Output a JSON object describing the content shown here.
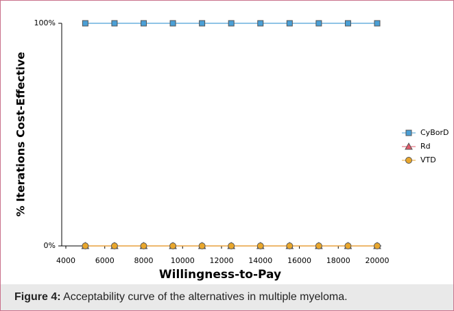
{
  "chart_data": {
    "type": "line",
    "ylabel": "% Iterations Cost-Effective",
    "xlabel": "Willingness-to-Pay",
    "x": [
      5000,
      6500,
      8000,
      9500,
      11000,
      12500,
      14000,
      15500,
      17000,
      18500,
      20000
    ],
    "series": [
      {
        "name": "CyBorD",
        "color": "#4a9fd6",
        "marker": "square",
        "values": [
          100,
          100,
          100,
          100,
          100,
          100,
          100,
          100,
          100,
          100,
          100
        ]
      },
      {
        "name": "Rd",
        "color": "#e05a6a",
        "marker": "triangle",
        "values": [
          0,
          0,
          0,
          0,
          0,
          0,
          0,
          0,
          0,
          0,
          0
        ]
      },
      {
        "name": "VTD",
        "color": "#e8a62c",
        "marker": "circle",
        "values": [
          0,
          0,
          0,
          0,
          0,
          0,
          0,
          0,
          0,
          0,
          0
        ]
      }
    ],
    "xlim": [
      4000,
      20000
    ],
    "xticks": [
      4000,
      6000,
      8000,
      10000,
      12000,
      14000,
      16000,
      18000,
      20000
    ],
    "ylim": [
      0,
      100
    ],
    "yticks": [
      {
        "value": 0,
        "label": "0%"
      },
      {
        "value": 100,
        "label": "100%"
      }
    ],
    "legend": "right"
  },
  "caption": {
    "label": "Figure 4:",
    "text": " Acceptability curve of the alternatives in multiple myeloma."
  }
}
